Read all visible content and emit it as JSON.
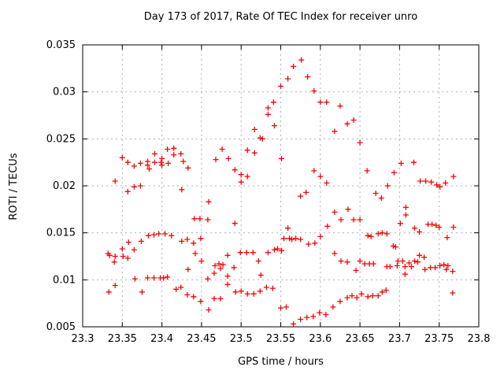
{
  "chart_data": {
    "type": "scatter",
    "title": "Day 173 of 2017, Rate Of TEC Index for receiver unro",
    "xlabel": "GPS time / hours",
    "ylabel": "ROTI / TECUs",
    "xlim": [
      23.3,
      23.8
    ],
    "ylim": [
      0.005,
      0.035
    ],
    "x_ticks": [
      23.3,
      23.35,
      23.4,
      23.45,
      23.5,
      23.55,
      23.6,
      23.65,
      23.7,
      23.75,
      23.8
    ],
    "x_tick_labels": [
      "23.3",
      "23.35",
      "23.4",
      "23.45",
      "23.5",
      "23.55",
      "23.6",
      "23.65",
      "23.7",
      "23.75",
      "23.8"
    ],
    "y_ticks": [
      0.005,
      0.01,
      0.015,
      0.02,
      0.025,
      0.03,
      0.035
    ],
    "y_tick_labels": [
      "0.005",
      "0.01",
      "0.015",
      "0.02",
      "0.025",
      "0.03",
      "0.035"
    ],
    "grid": true,
    "legend": null,
    "marker": {
      "shape": "plus",
      "size": 7,
      "color": "#ff0000"
    },
    "colors": {
      "axis": "#000000",
      "grid": "#b0b0b0",
      "background": "#ffffff",
      "marker": "#ff0000"
    },
    "series": [
      {
        "name": "ROTI",
        "points": [
          [
            23.341,
            0.0205
          ],
          [
            23.35,
            0.023
          ],
          [
            23.357,
            0.0225
          ],
          [
            23.365,
            0.0221
          ],
          [
            23.373,
            0.0224
          ],
          [
            23.382,
            0.0226
          ],
          [
            23.382,
            0.0222
          ],
          [
            23.384,
            0.0218
          ],
          [
            23.391,
            0.0234
          ],
          [
            23.391,
            0.0225
          ],
          [
            23.399,
            0.0225
          ],
          [
            23.4,
            0.0229
          ],
          [
            23.4,
            0.0222
          ],
          [
            23.407,
            0.0239
          ],
          [
            23.408,
            0.0224
          ],
          [
            23.415,
            0.024
          ],
          [
            23.415,
            0.0233
          ],
          [
            23.424,
            0.0234
          ],
          [
            23.427,
            0.0226
          ],
          [
            23.365,
            0.0199
          ],
          [
            23.373,
            0.02
          ],
          [
            23.357,
            0.0194
          ],
          [
            23.425,
            0.0196
          ],
          [
            23.383,
            0.0147
          ],
          [
            23.39,
            0.0148
          ],
          [
            23.396,
            0.0149
          ],
          [
            23.404,
            0.0149
          ],
          [
            23.412,
            0.0147
          ],
          [
            23.425,
            0.0141
          ],
          [
            23.374,
            0.0141
          ],
          [
            23.358,
            0.014
          ],
          [
            23.365,
            0.0132
          ],
          [
            23.35,
            0.0133
          ],
          [
            23.332,
            0.0128
          ],
          [
            23.334,
            0.0126
          ],
          [
            23.341,
            0.0125
          ],
          [
            23.351,
            0.0125
          ],
          [
            23.357,
            0.0123
          ],
          [
            23.34,
            0.0119
          ],
          [
            23.366,
            0.0101
          ],
          [
            23.382,
            0.0102
          ],
          [
            23.39,
            0.0102
          ],
          [
            23.398,
            0.0102
          ],
          [
            23.402,
            0.0102
          ],
          [
            23.407,
            0.0103
          ],
          [
            23.341,
            0.0094
          ],
          [
            23.333,
            0.0087
          ],
          [
            23.375,
            0.0087
          ],
          [
            23.418,
            0.009
          ],
          [
            23.424,
            0.0092
          ],
          [
            23.559,
            0.0314
          ],
          [
            23.55,
            0.0306
          ],
          [
            23.541,
            0.0289
          ],
          [
            23.534,
            0.0283
          ],
          [
            23.534,
            0.0276
          ],
          [
            23.542,
            0.0264
          ],
          [
            23.517,
            0.026
          ],
          [
            23.524,
            0.0251
          ],
          [
            23.527,
            0.025
          ],
          [
            23.476,
            0.0239
          ],
          [
            23.508,
            0.0238
          ],
          [
            23.517,
            0.0235
          ],
          [
            23.484,
            0.0229
          ],
          [
            23.468,
            0.0228
          ],
          [
            23.551,
            0.0229
          ],
          [
            23.433,
            0.0219
          ],
          [
            23.492,
            0.0217
          ],
          [
            23.5,
            0.0212
          ],
          [
            23.508,
            0.021
          ],
          [
            23.5,
            0.0204
          ],
          [
            23.459,
            0.0183
          ],
          [
            23.441,
            0.0165
          ],
          [
            23.448,
            0.0165
          ],
          [
            23.458,
            0.0164
          ],
          [
            23.492,
            0.016
          ],
          [
            23.559,
            0.0155
          ],
          [
            23.554,
            0.0144
          ],
          [
            23.561,
            0.0144
          ],
          [
            23.564,
            0.0143
          ],
          [
            23.569,
            0.0144
          ],
          [
            23.432,
            0.0143
          ],
          [
            23.44,
            0.0139
          ],
          [
            23.449,
            0.0144
          ],
          [
            23.442,
            0.0128
          ],
          [
            23.483,
            0.0126
          ],
          [
            23.499,
            0.0129
          ],
          [
            23.507,
            0.0129
          ],
          [
            23.515,
            0.0129
          ],
          [
            23.522,
            0.012
          ],
          [
            23.534,
            0.0129
          ],
          [
            23.542,
            0.0132
          ],
          [
            23.546,
            0.0133
          ],
          [
            23.551,
            0.0131
          ],
          [
            23.45,
            0.012
          ],
          [
            23.467,
            0.0115
          ],
          [
            23.472,
            0.0117
          ],
          [
            23.477,
            0.0116
          ],
          [
            23.466,
            0.0107
          ],
          [
            23.474,
            0.0112
          ],
          [
            23.433,
            0.0111
          ],
          [
            23.491,
            0.0113
          ],
          [
            23.483,
            0.0104
          ],
          [
            23.525,
            0.0105
          ],
          [
            23.458,
            0.0101
          ],
          [
            23.483,
            0.0095
          ],
          [
            23.493,
            0.0087
          ],
          [
            23.5,
            0.0088
          ],
          [
            23.508,
            0.0085
          ],
          [
            23.516,
            0.0085
          ],
          [
            23.524,
            0.0088
          ],
          [
            23.532,
            0.0092
          ],
          [
            23.54,
            0.0091
          ],
          [
            23.432,
            0.0084
          ],
          [
            23.44,
            0.0082
          ],
          [
            23.466,
            0.008
          ],
          [
            23.474,
            0.008
          ],
          [
            23.449,
            0.0077
          ],
          [
            23.459,
            0.0068
          ],
          [
            23.55,
            0.007
          ],
          [
            23.557,
            0.0071
          ],
          [
            23.576,
            0.0334
          ],
          [
            23.566,
            0.0327
          ],
          [
            23.584,
            0.0316
          ],
          [
            23.592,
            0.0301
          ],
          [
            23.6,
            0.0289
          ],
          [
            23.608,
            0.0289
          ],
          [
            23.625,
            0.0285
          ],
          [
            23.642,
            0.027
          ],
          [
            23.634,
            0.0266
          ],
          [
            23.618,
            0.0258
          ],
          [
            23.65,
            0.0246
          ],
          [
            23.592,
            0.0216
          ],
          [
            23.6,
            0.021
          ],
          [
            23.608,
            0.0203
          ],
          [
            23.659,
            0.0216
          ],
          [
            23.693,
            0.0214
          ],
          [
            23.685,
            0.02
          ],
          [
            23.582,
            0.0193
          ],
          [
            23.575,
            0.0189
          ],
          [
            23.67,
            0.0192
          ],
          [
            23.677,
            0.0187
          ],
          [
            23.635,
            0.0175
          ],
          [
            23.618,
            0.0172
          ],
          [
            23.626,
            0.0164
          ],
          [
            23.642,
            0.0164
          ],
          [
            23.65,
            0.0164
          ],
          [
            23.609,
            0.0157
          ],
          [
            23.575,
            0.0143
          ],
          [
            23.6,
            0.0146
          ],
          [
            23.585,
            0.0138
          ],
          [
            23.593,
            0.0139
          ],
          [
            23.66,
            0.0147
          ],
          [
            23.664,
            0.0146
          ],
          [
            23.673,
            0.0149
          ],
          [
            23.678,
            0.015
          ],
          [
            23.684,
            0.0149
          ],
          [
            23.692,
            0.0136
          ],
          [
            23.618,
            0.0128
          ],
          [
            23.626,
            0.012
          ],
          [
            23.634,
            0.0119
          ],
          [
            23.65,
            0.012
          ],
          [
            23.656,
            0.0117
          ],
          [
            23.662,
            0.0117
          ],
          [
            23.667,
            0.0117
          ],
          [
            23.684,
            0.0114
          ],
          [
            23.688,
            0.0114
          ],
          [
            23.697,
            0.0115
          ],
          [
            23.645,
            0.011
          ],
          [
            23.566,
            0.0053
          ],
          [
            23.575,
            0.0058
          ],
          [
            23.583,
            0.006
          ],
          [
            23.591,
            0.0061
          ],
          [
            23.599,
            0.0065
          ],
          [
            23.607,
            0.0063
          ],
          [
            23.616,
            0.0071
          ],
          [
            23.625,
            0.0077
          ],
          [
            23.634,
            0.0081
          ],
          [
            23.64,
            0.0083
          ],
          [
            23.646,
            0.0081
          ],
          [
            23.652,
            0.0085
          ],
          [
            23.66,
            0.0082
          ],
          [
            23.666,
            0.0083
          ],
          [
            23.673,
            0.0083
          ],
          [
            23.678,
            0.0087
          ],
          [
            23.683,
            0.0089
          ],
          [
            23.702,
            0.0224
          ],
          [
            23.718,
            0.0225
          ],
          [
            23.726,
            0.0205
          ],
          [
            23.733,
            0.0205
          ],
          [
            23.74,
            0.0204
          ],
          [
            23.747,
            0.0201
          ],
          [
            23.751,
            0.0199
          ],
          [
            23.758,
            0.0203
          ],
          [
            23.768,
            0.021
          ],
          [
            23.708,
            0.0177
          ],
          [
            23.708,
            0.0169
          ],
          [
            23.701,
            0.016
          ],
          [
            23.719,
            0.0155
          ],
          [
            23.725,
            0.0151
          ],
          [
            23.736,
            0.0159
          ],
          [
            23.741,
            0.0159
          ],
          [
            23.746,
            0.0158
          ],
          [
            23.75,
            0.0156
          ],
          [
            23.768,
            0.0156
          ],
          [
            23.76,
            0.0145
          ],
          [
            23.725,
            0.0126
          ],
          [
            23.731,
            0.0124
          ],
          [
            23.698,
            0.012
          ],
          [
            23.704,
            0.012
          ],
          [
            23.712,
            0.0118
          ],
          [
            23.719,
            0.012
          ],
          [
            23.723,
            0.0119
          ],
          [
            23.707,
            0.0114
          ],
          [
            23.715,
            0.0114
          ],
          [
            23.732,
            0.0111
          ],
          [
            23.739,
            0.0113
          ],
          [
            23.745,
            0.0113
          ],
          [
            23.751,
            0.0115
          ],
          [
            23.756,
            0.0116
          ],
          [
            23.761,
            0.0115
          ],
          [
            23.759,
            0.0111
          ],
          [
            23.767,
            0.0109
          ],
          [
            23.707,
            0.0106
          ],
          [
            23.767,
            0.0086
          ],
          [
            23.695,
            0.0135
          ]
        ]
      }
    ]
  }
}
